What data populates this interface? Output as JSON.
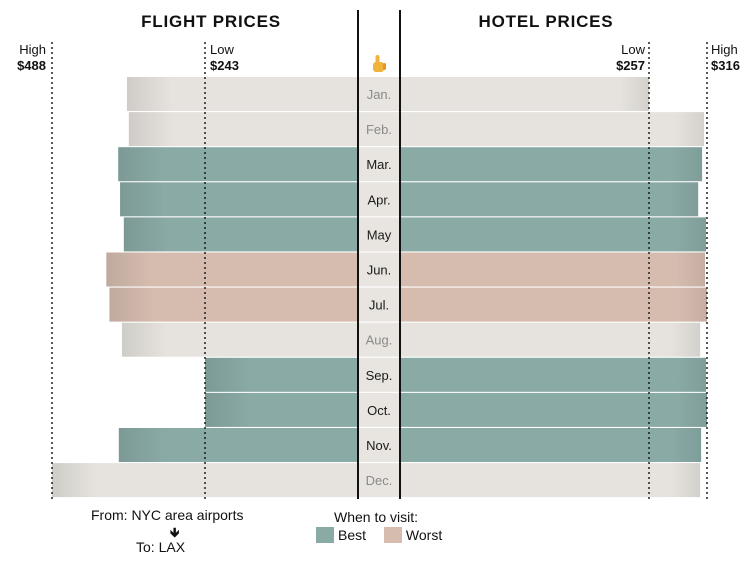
{
  "chart_data": {
    "type": "bar",
    "subtype": "butterfly",
    "left_title": "FLIGHT PRICES",
    "right_title": "HOTEL PRICES",
    "center_icon": "pointing-hand-icon",
    "categories": [
      "Jan.",
      "Feb.",
      "Mar.",
      "Apr.",
      "May",
      "Jun.",
      "Jul.",
      "Aug.",
      "Sep.",
      "Oct.",
      "Nov.",
      "Dec."
    ],
    "ratings": [
      "neutral",
      "neutral",
      "best",
      "best",
      "best",
      "worst",
      "worst",
      "neutral",
      "best",
      "best",
      "best",
      "neutral"
    ],
    "series": [
      {
        "name": "FLIGHT PRICES",
        "values": [
          368,
          365,
          382,
          379,
          373,
          401,
          396,
          376,
          243,
          243,
          381,
          488
        ]
      },
      {
        "name": "HOTEL PRICES",
        "values": [
          257,
          313,
          311,
          307,
          315,
          314,
          316,
          309,
          315,
          316,
          310,
          309
        ]
      }
    ],
    "flight_axis": {
      "high_label": "High",
      "high_value_label": "$488",
      "high": 488,
      "low_label": "Low",
      "low_value_label": "$243",
      "low": 243
    },
    "hotel_axis": {
      "low_label": "Low",
      "low_value_label": "$257",
      "low": 257,
      "high_label": "High",
      "high_value_label": "$316",
      "high": 316
    },
    "colors": {
      "best": "#8aaaa6",
      "worst": "#d5bcaf",
      "neutral": "#e6e3de",
      "center_band": "#e8e5e0",
      "month_text_highlight": "#1a1a1a",
      "month_text_neutral": "#8a8a8a",
      "icon": "#f2b33d"
    }
  },
  "footer": {
    "from": "From: NYC area airports",
    "arrow": "🡻",
    "to": "To: LAX"
  },
  "legend": {
    "title": "When to visit:",
    "best": "Best",
    "worst": "Worst"
  }
}
